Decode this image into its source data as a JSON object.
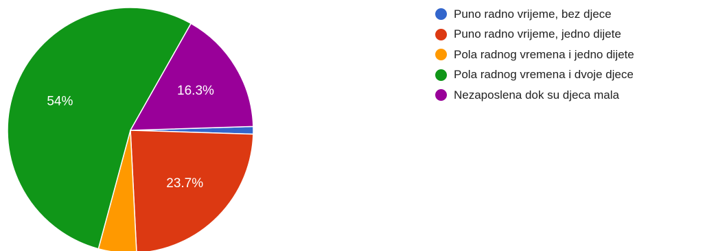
{
  "chart_data": {
    "type": "pie",
    "legend_position": "right",
    "slices": [
      {
        "label": "Puno radno vrijeme, bez djece",
        "value": 1.0,
        "display": "",
        "color": "#3366cc"
      },
      {
        "label": "Puno radno vrijeme, jedno dijete",
        "value": 23.7,
        "display": "23.7%",
        "color": "#dc3912"
      },
      {
        "label": "Pola radnog vremena i jedno dijete",
        "value": 5.0,
        "display": "",
        "color": "#ff9900"
      },
      {
        "label": "Pola radnog vremena i dvoje djece",
        "value": 54.0,
        "display": "54%",
        "color": "#109618"
      },
      {
        "label": "Nezaposlena dok su djeca mala",
        "value": 16.3,
        "display": "16.3%",
        "color": "#990099"
      }
    ]
  }
}
